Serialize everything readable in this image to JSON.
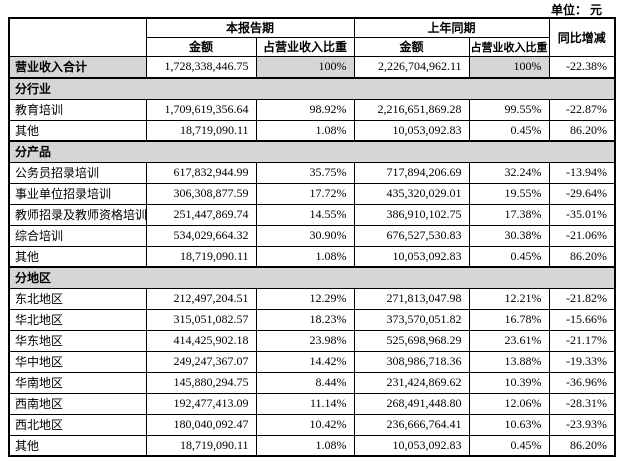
{
  "unit_label": "单位： 元",
  "colors": {
    "section_bg": "#d6d6d6",
    "border": "#000000"
  },
  "table": {
    "header": {
      "current_period": "本报告期",
      "prior_period": "上年同期",
      "yoy": "同比增减",
      "amount": "金额",
      "pct": "占营业收入比重"
    },
    "rows": [
      {
        "type": "total",
        "cells": [
          "营业收入合计",
          "1,728,338,446.75",
          "100%",
          "2,226,704,962.11",
          "100%",
          "-22.38%"
        ]
      },
      {
        "type": "section",
        "label": "分行业"
      },
      {
        "type": "data",
        "cells": [
          "教育培训",
          "1,709,619,356.64",
          "98.92%",
          "2,216,651,869.28",
          "99.55%",
          "-22.87%"
        ]
      },
      {
        "type": "data",
        "cells": [
          "其他",
          "18,719,090.11",
          "1.08%",
          "10,053,092.83",
          "0.45%",
          "86.20%"
        ]
      },
      {
        "type": "section",
        "label": "分产品"
      },
      {
        "type": "data",
        "cells": [
          "公务员招录培训",
          "617,832,944.99",
          "35.75%",
          "717,894,206.69",
          "32.24%",
          "-13.94%"
        ]
      },
      {
        "type": "data",
        "cells": [
          "事业单位招录培训",
          "306,308,877.59",
          "17.72%",
          "435,320,029.01",
          "19.55%",
          "-29.64%"
        ]
      },
      {
        "type": "data",
        "cells": [
          "教师招录及教师资格培训",
          "251,447,869.74",
          "14.55%",
          "386,910,102.75",
          "17.38%",
          "-35.01%"
        ]
      },
      {
        "type": "data",
        "cells": [
          "综合培训",
          "534,029,664.32",
          "30.90%",
          "676,527,530.83",
          "30.38%",
          "-21.06%"
        ]
      },
      {
        "type": "data",
        "cells": [
          "其他",
          "18,719,090.11",
          "1.08%",
          "10,053,092.83",
          "0.45%",
          "86.20%"
        ]
      },
      {
        "type": "section",
        "label": "分地区"
      },
      {
        "type": "data",
        "cells": [
          "东北地区",
          "212,497,204.51",
          "12.29%",
          "271,813,047.98",
          "12.21%",
          "-21.82%"
        ]
      },
      {
        "type": "data",
        "cells": [
          "华北地区",
          "315,051,082.57",
          "18.23%",
          "373,570,051.82",
          "16.78%",
          "-15.66%"
        ]
      },
      {
        "type": "data",
        "cells": [
          "华东地区",
          "414,425,902.18",
          "23.98%",
          "525,698,968.29",
          "23.61%",
          "-21.17%"
        ]
      },
      {
        "type": "data",
        "cells": [
          "华中地区",
          "249,247,367.07",
          "14.42%",
          "308,986,718.36",
          "13.88%",
          "-19.33%"
        ]
      },
      {
        "type": "data",
        "cells": [
          "华南地区",
          "145,880,294.75",
          "8.44%",
          "231,424,869.62",
          "10.39%",
          "-36.96%"
        ]
      },
      {
        "type": "data",
        "cells": [
          "西南地区",
          "192,477,413.09",
          "11.14%",
          "268,491,448.80",
          "12.06%",
          "-28.31%"
        ]
      },
      {
        "type": "data",
        "cells": [
          "西北地区",
          "180,040,092.47",
          "10.42%",
          "236,666,764.41",
          "10.63%",
          "-23.93%"
        ]
      },
      {
        "type": "data",
        "cells": [
          "其他",
          "18,719,090.11",
          "1.08%",
          "10,053,092.83",
          "0.45%",
          "86.20%"
        ]
      }
    ]
  }
}
